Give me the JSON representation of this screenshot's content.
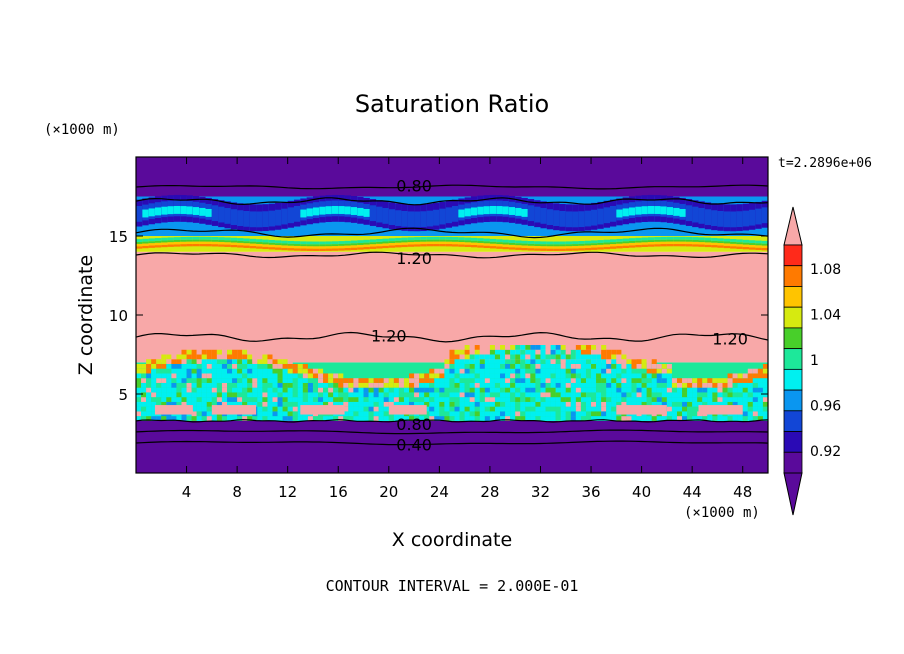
{
  "chart_data": {
    "type": "heatmap",
    "title": "Saturation Ratio",
    "xlabel": "X coordinate",
    "ylabel": "Z coordinate",
    "x_unit": "(×1000 m)",
    "y_unit": "(×1000 m)",
    "xlim": [
      0,
      50
    ],
    "ylim": [
      0,
      20
    ],
    "x_ticks": [
      4,
      8,
      12,
      16,
      20,
      24,
      28,
      32,
      36,
      40,
      44,
      48
    ],
    "y_ticks": [
      5,
      10,
      15
    ],
    "time_label": "t=2.2896e+06",
    "footer": "CONTOUR INTERVAL = 2.000E-01",
    "colorbar": {
      "tick_labels": [
        "1.08",
        "1.04",
        "1",
        "0.96",
        "0.92"
      ],
      "tick_values": [
        1.08,
        1.04,
        1.0,
        0.96,
        0.92
      ],
      "levels": [
        0.9,
        0.92,
        0.94,
        0.96,
        0.98,
        1.0,
        1.02,
        1.04,
        1.06,
        1.08,
        1.1
      ],
      "colors": [
        "#5a0a9b",
        "#2a0ab5",
        "#1246d6",
        "#0a96f0",
        "#00f0f0",
        "#1de89a",
        "#48cf2a",
        "#d6ea10",
        "#ffc400",
        "#ff7a00",
        "#ff2a1a"
      ],
      "over_color": "#f8a8a8",
      "under_color": "#5a0a9b"
    },
    "contour_labels": [
      {
        "text": "0.80",
        "x": 22,
        "y": 18.2
      },
      {
        "text": "1.20",
        "x": 22,
        "y": 13.6
      },
      {
        "text": "1.20",
        "x": 20,
        "y": 8.7
      },
      {
        "text": "1.20",
        "x": 47,
        "y": 8.5
      },
      {
        "text": "0.80",
        "x": 22,
        "y": 3.1
      },
      {
        "text": "0.40",
        "x": 22,
        "y": 1.8
      }
    ],
    "bands": [
      {
        "z": [
          0,
          3.3
        ],
        "value": 0.5
      },
      {
        "z": [
          3.3,
          7.0
        ],
        "value": 1.0
      },
      {
        "z": [
          7.0,
          14.0
        ],
        "value": 1.3
      },
      {
        "z": [
          14.0,
          15.0
        ],
        "value": 1.05
      },
      {
        "z": [
          15.0,
          17.5
        ],
        "value": 0.96
      },
      {
        "z": [
          17.5,
          20.0
        ],
        "value": 0.6
      }
    ]
  }
}
